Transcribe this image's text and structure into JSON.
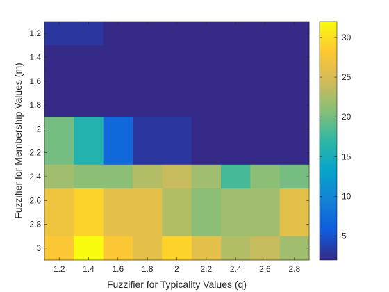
{
  "chart_data": {
    "type": "heatmap",
    "title": "",
    "xlabel": "Fuzzifier for Typicality Values (q)",
    "ylabel": "Fuzzifier for Membership Values (m)",
    "x": [
      "1.2",
      "1.4",
      "1.6",
      "1.8",
      "2",
      "2.2",
      "2.4",
      "2.6",
      "2.8"
    ],
    "y": [
      "1.2",
      "1.4",
      "1.6",
      "1.8",
      "2",
      "2.2",
      "2.4",
      "2.6",
      "2.8",
      "3"
    ],
    "y_direction": "top-to-bottom",
    "values": [
      [
        3,
        3,
        2,
        2,
        2,
        2,
        2,
        2,
        2
      ],
      [
        2,
        2,
        2,
        2,
        2,
        2,
        2,
        2,
        2
      ],
      [
        2,
        2,
        2,
        2,
        2,
        2,
        2,
        2,
        2
      ],
      [
        2,
        2,
        2,
        2,
        2,
        2,
        2,
        2,
        2
      ],
      [
        20,
        16,
        7,
        3,
        3,
        2,
        2,
        2,
        2
      ],
      [
        20,
        16,
        7,
        3,
        3,
        2,
        2,
        2,
        2
      ],
      [
        22,
        21,
        21,
        23,
        24,
        22,
        18,
        21,
        20
      ],
      [
        27,
        29,
        26,
        26,
        23,
        21,
        22,
        22,
        26
      ],
      [
        27,
        29,
        26,
        26,
        23,
        21,
        22,
        22,
        26
      ],
      [
        28,
        32,
        28,
        26,
        29,
        26,
        23,
        24,
        22
      ]
    ],
    "colorbar": {
      "range": [
        2,
        32
      ],
      "ticks": [
        5,
        10,
        15,
        20,
        25,
        30
      ],
      "colormap": "parula",
      "colormap_stops": [
        "#352a87",
        "#0f5cdd",
        "#1481d6",
        "#06a4ca",
        "#2eb7a4",
        "#87bf77",
        "#d1bb59",
        "#fec832",
        "#f9fb0e"
      ]
    },
    "grid": false
  }
}
